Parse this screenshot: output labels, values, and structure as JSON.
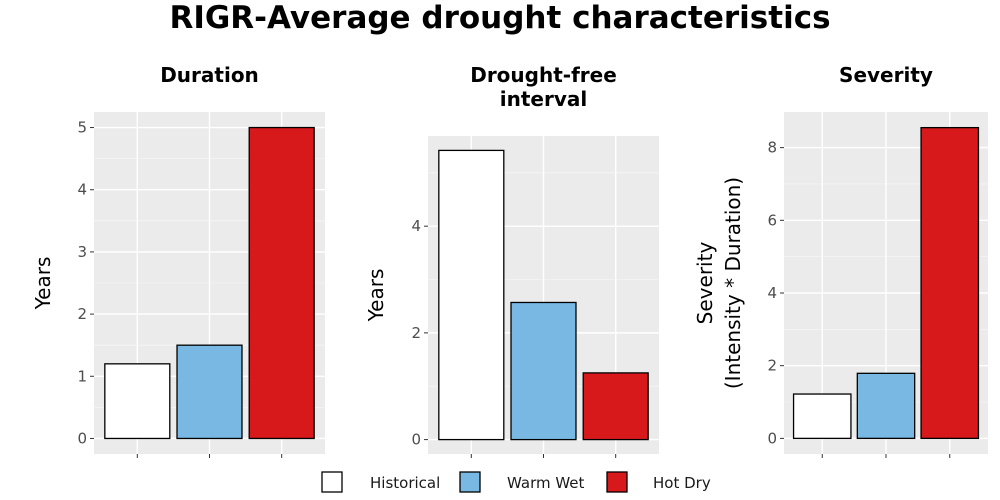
{
  "title": "RIGR-Average drought characteristics",
  "series_names": [
    "Historical",
    "Warm Wet",
    "Hot Dry"
  ],
  "colors": [
    "#ffffff",
    "#79b8e2",
    "#d7191c"
  ],
  "chart_data": [
    {
      "type": "bar",
      "title": [
        "Duration"
      ],
      "ylabel": [
        "Years"
      ],
      "categories": [
        "Historical",
        "Warm Wet",
        "Hot Dry"
      ],
      "values": [
        1.2,
        1.5,
        5.0
      ],
      "ylim": [
        -0.25,
        5.25
      ],
      "yticks": [
        0,
        1,
        2,
        3,
        4,
        5
      ],
      "grid": true,
      "legend": "bottom"
    },
    {
      "type": "bar",
      "title": [
        "Drought-free",
        "interval"
      ],
      "ylabel": [
        "Years"
      ],
      "categories": [
        "Historical",
        "Warm Wet",
        "Hot Dry"
      ],
      "values": [
        5.42,
        2.57,
        1.25
      ],
      "ylim": [
        -0.27,
        5.69
      ],
      "yticks": [
        0,
        2,
        4
      ],
      "grid": true,
      "legend": "bottom"
    },
    {
      "type": "bar",
      "title": [
        "Severity"
      ],
      "ylabel": [
        "Severity",
        "(Intensity * Duration)"
      ],
      "categories": [
        "Historical",
        "Warm Wet",
        "Hot Dry"
      ],
      "values": [
        1.22,
        1.79,
        8.55
      ],
      "ylim": [
        -0.43,
        8.98
      ],
      "yticks": [
        0,
        2,
        4,
        6,
        8
      ],
      "grid": true,
      "legend": "bottom"
    }
  ]
}
